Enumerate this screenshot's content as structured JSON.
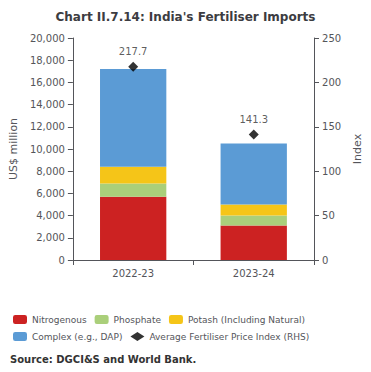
{
  "chart_data": {
    "type": "bar",
    "title": "Chart II.7.14: India's Fertiliser Imports",
    "source": "Source: DGCI&S and World Bank.",
    "categories": [
      "2022-23",
      "2023-24"
    ],
    "stacked": true,
    "grid": false,
    "legend": "bottom",
    "series": [
      {
        "name": "Nitrogenous",
        "color": "#cc2222",
        "values": [
          5700,
          3100
        ]
      },
      {
        "name": "Phosphate",
        "color": "#aacf7a",
        "values": [
          1200,
          900
        ]
      },
      {
        "name": "Potash (Including Natural)",
        "color": "#f5c518",
        "values": [
          1500,
          1000
        ]
      },
      {
        "name": "Complex (e.g., DAP)",
        "color": "#5b9bd5",
        "values": [
          8800,
          5500
        ]
      },
      {
        "name": "Average Fertiliser Price Index (RHS)",
        "type": "scatter",
        "axis": "y2",
        "marker": "diamond",
        "color": "black",
        "data_labels": true,
        "values": [
          217.7,
          141.3
        ]
      }
    ],
    "ylabel": "US$ million",
    "y2label": "Index",
    "ylim": [
      0,
      20000
    ],
    "yticks": [
      0,
      {
        "value": 2000,
        "label": "2,000"
      },
      {
        "value": 4000,
        "label": "4,000"
      },
      {
        "value": 6000,
        "label": "6,000"
      },
      {
        "value": 8000,
        "label": "8,000"
      },
      {
        "value": 10000,
        "label": "10,000"
      },
      {
        "value": 12000,
        "label": "12,000"
      },
      {
        "value": 14000,
        "label": "14,000"
      },
      {
        "value": 16000,
        "label": "16,000"
      },
      {
        "value": 18000,
        "label": "18,000"
      },
      {
        "value": 20000,
        "label": "20,000"
      }
    ],
    "y2lim": [
      0,
      250
    ],
    "y2ticks": [
      0,
      50,
      100,
      150,
      200,
      250
    ]
  }
}
